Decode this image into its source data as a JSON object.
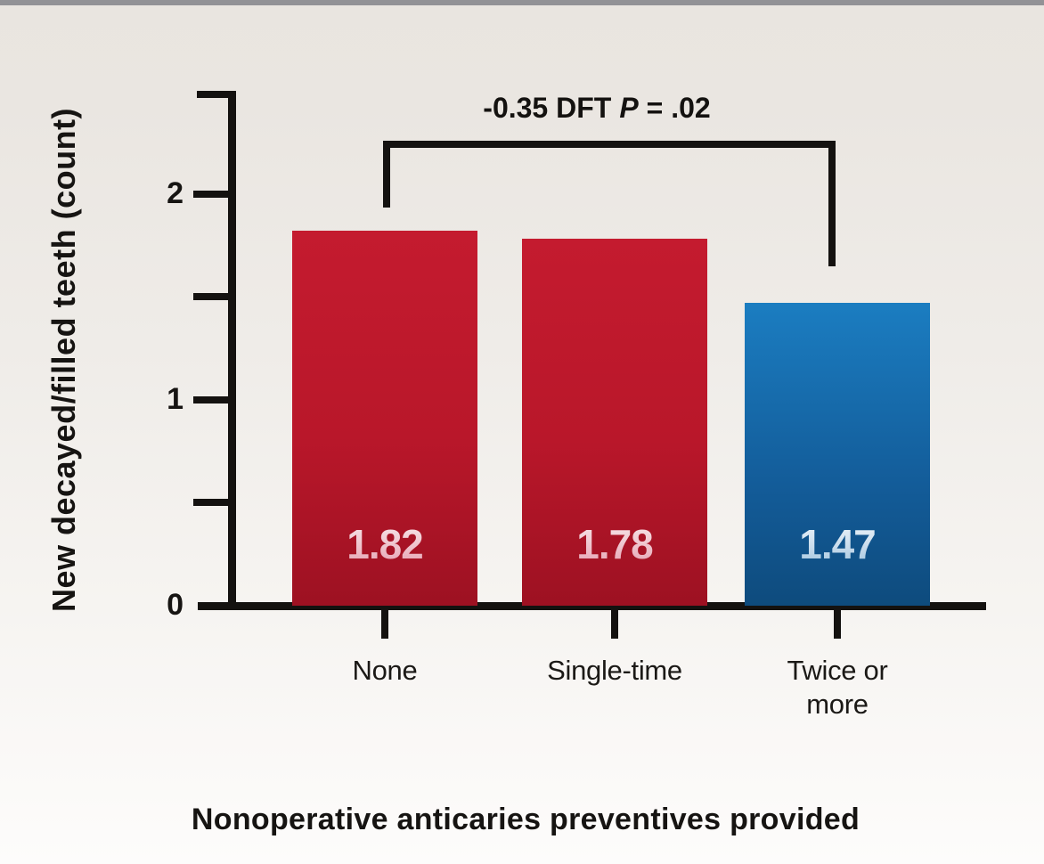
{
  "figure": {
    "top_strip_color": "#929296",
    "background_top": "#e9e5e0",
    "background_bottom": "#fdfcfb",
    "axis_color": "#141210"
  },
  "chart_data": {
    "type": "bar",
    "categories": [
      "None",
      "Single-time",
      "Twice or more"
    ],
    "values": [
      1.82,
      1.78,
      1.47
    ],
    "value_labels": [
      "1.82",
      "1.78",
      "1.47"
    ],
    "bar_color_names": [
      "red",
      "red",
      "blue"
    ],
    "bar_colors_hex": {
      "red_top": "#c41b2f",
      "red_bottom": "#9d1122",
      "blue_top": "#1b7dc1",
      "blue_bottom": "#0e4b7d"
    },
    "title": "",
    "xlabel": "Nonoperative anticaries preventives provided",
    "ylabel": "New decayed/filled teeth (count)",
    "ylim": [
      0,
      2.5
    ],
    "yticks_labeled": [
      {
        "value": 0,
        "label": "0"
      },
      {
        "value": 1,
        "label": "1"
      },
      {
        "value": 2,
        "label": "2"
      }
    ],
    "yticks_minor": [
      0.5,
      1.5
    ],
    "grid": false,
    "legend": null,
    "annotation": {
      "full_text": "-0.35 DFT P = .02",
      "prefix": "-0.35 DFT",
      "p_label": "P",
      "suffix": "= .02",
      "bracket_from_category": "None",
      "bracket_to_category": "Twice or more"
    }
  }
}
